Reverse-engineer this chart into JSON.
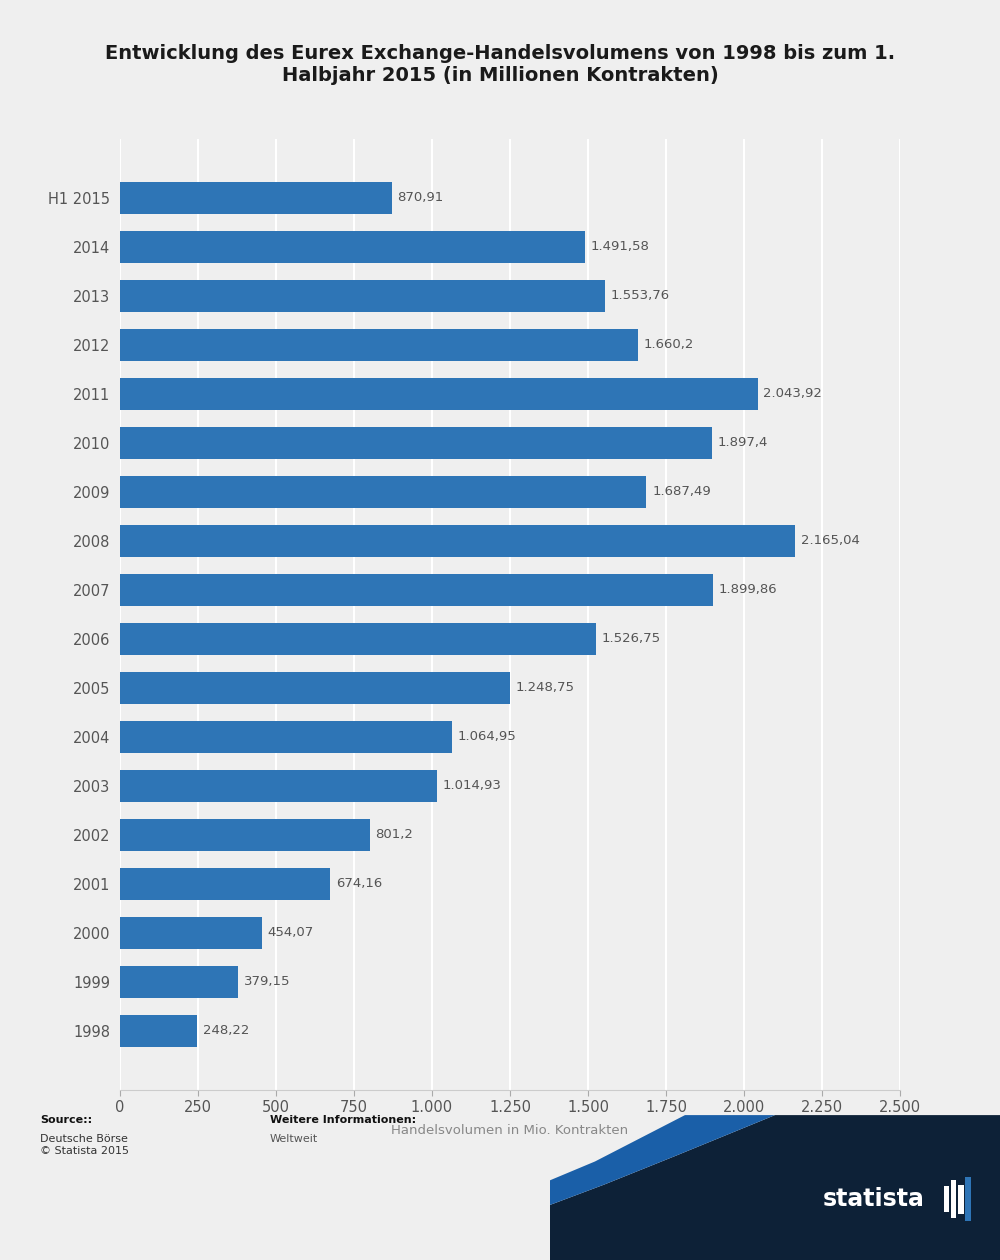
{
  "title": "Entwicklung des Eurex Exchange-Handelsvolumens von 1998 bis zum 1.\nHalbjahr 2015 (in Millionen Kontrakten)",
  "categories": [
    "H1 2015",
    "2014",
    "2013",
    "2012",
    "2011",
    "2010",
    "2009",
    "2008",
    "2007",
    "2006",
    "2005",
    "2004",
    "2003",
    "2002",
    "2001",
    "2000",
    "1999",
    "1998"
  ],
  "values": [
    870.91,
    1491.58,
    1553.76,
    1660.2,
    2043.92,
    1897.4,
    1687.49,
    2165.04,
    1899.86,
    1526.75,
    1248.75,
    1064.95,
    1014.93,
    801.2,
    674.16,
    454.07,
    379.15,
    248.22
  ],
  "labels": [
    "870,91",
    "1.491,58",
    "1.553,76",
    "1.660,2",
    "2.043,92",
    "1.897,4",
    "1.687,49",
    "2.165,04",
    "1.899,86",
    "1.526,75",
    "1.248,75",
    "1.064,95",
    "1.014,93",
    "801,2",
    "674,16",
    "454,07",
    "379,15",
    "248,22"
  ],
  "bar_color": "#2e75b6",
  "background_color": "#efefef",
  "xlabel": "Handelsvolumen in Mio. Kontrakten",
  "xlim": [
    0,
    2500
  ],
  "xticks": [
    0,
    250,
    500,
    750,
    1000,
    1250,
    1500,
    1750,
    2000,
    2250,
    2500
  ],
  "xtick_labels": [
    "0",
    "250",
    "500",
    "750",
    "1.000",
    "1.250",
    "1.500",
    "1.750",
    "2.000",
    "2.250",
    "2.500"
  ],
  "source_bold": "Source::",
  "source_normal": "\nDeutsche Börse\n© Statista 2015",
  "info_label": "Weitere Informationen:",
  "info_value": "Weltweit",
  "title_fontsize": 14,
  "label_fontsize": 9.5,
  "ytick_fontsize": 10.5,
  "xtick_fontsize": 10.5
}
